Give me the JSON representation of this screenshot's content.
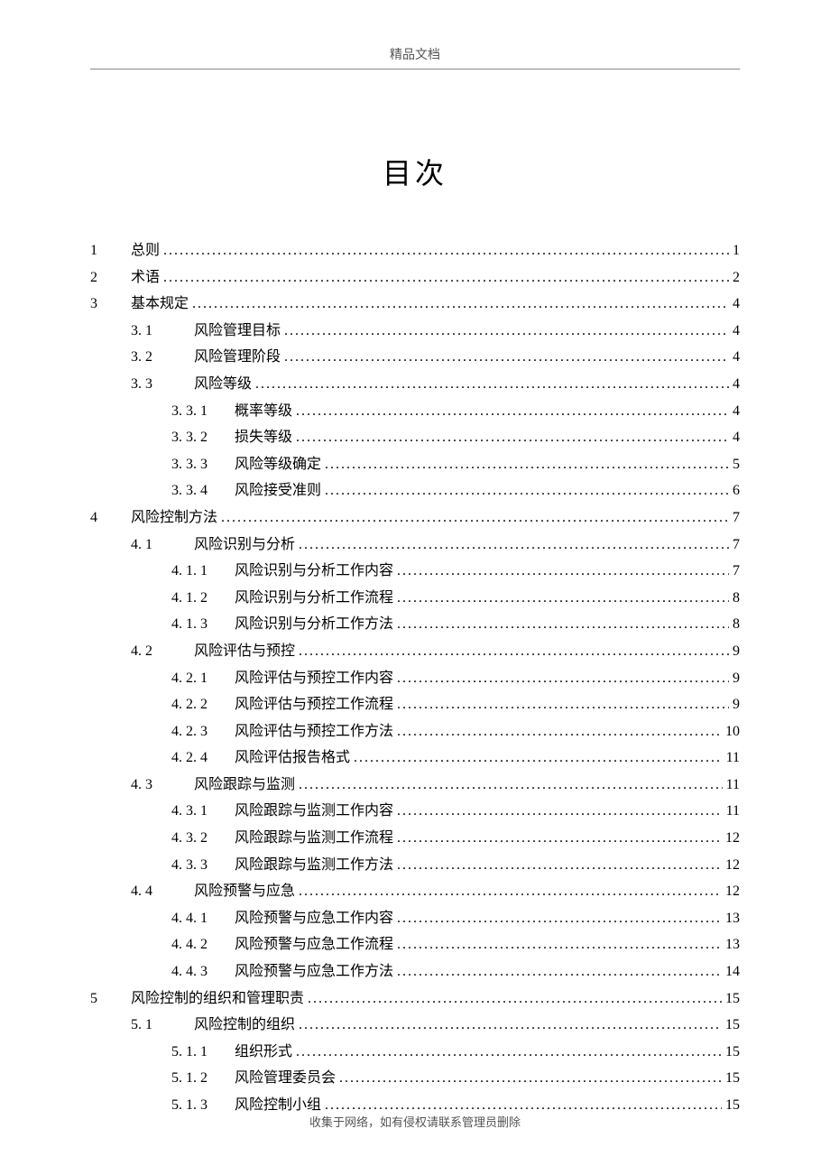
{
  "header_text": "精品文档",
  "title": "目次",
  "footer_text": "收集于网络，如有侵权请联系管理员删除",
  "toc": [
    {
      "level": 0,
      "num": "1",
      "label": "总则",
      "page": "1"
    },
    {
      "level": 0,
      "num": "2",
      "label": "术语",
      "page": "2"
    },
    {
      "level": 0,
      "num": "3",
      "label": "基本规定",
      "page": "4"
    },
    {
      "level": 1,
      "num": "3. 1",
      "label": "风险管理目标",
      "page": "4"
    },
    {
      "level": 1,
      "num": "3. 2",
      "label": "风险管理阶段",
      "page": "4"
    },
    {
      "level": 1,
      "num": "3. 3",
      "label": "风险等级",
      "page": "4"
    },
    {
      "level": 2,
      "num": "3. 3. 1",
      "label": "概率等级",
      "page": "4"
    },
    {
      "level": 2,
      "num": "3. 3. 2",
      "label": "损失等级",
      "page": "4"
    },
    {
      "level": 2,
      "num": "3. 3. 3",
      "label": "风险等级确定",
      "page": "5"
    },
    {
      "level": 2,
      "num": "3. 3. 4",
      "label": "风险接受准则",
      "page": "6"
    },
    {
      "level": 0,
      "num": "4",
      "label": "风险控制方法",
      "page": "7"
    },
    {
      "level": 1,
      "num": "4. 1",
      "label": "风险识别与分析",
      "page": "7"
    },
    {
      "level": 2,
      "num": "4. 1. 1",
      "label": "风险识别与分析工作内容",
      "page": "7"
    },
    {
      "level": 2,
      "num": "4. 1. 2",
      "label": "风险识别与分析工作流程",
      "page": "8"
    },
    {
      "level": 2,
      "num": "4. 1. 3",
      "label": "风险识别与分析工作方法",
      "page": "8"
    },
    {
      "level": 1,
      "num": "4. 2",
      "label": "风险评估与预控",
      "page": "9"
    },
    {
      "level": 2,
      "num": "4. 2. 1",
      "label": "风险评估与预控工作内容",
      "page": "9"
    },
    {
      "level": 2,
      "num": "4. 2. 2",
      "label": "风险评估与预控工作流程",
      "page": "9"
    },
    {
      "level": 2,
      "num": "4. 2. 3",
      "label": "风险评估与预控工作方法",
      "page": "10"
    },
    {
      "level": 2,
      "num": "4. 2. 4",
      "label": "风险评估报告格式",
      "page": "11"
    },
    {
      "level": 1,
      "num": "4. 3",
      "label": "风险跟踪与监测",
      "page": "11"
    },
    {
      "level": 2,
      "num": "4. 3. 1",
      "label": "风险跟踪与监测工作内容",
      "page": "11"
    },
    {
      "level": 2,
      "num": "4. 3. 2",
      "label": "风险跟踪与监测工作流程",
      "page": "12"
    },
    {
      "level": 2,
      "num": "4. 3. 3",
      "label": "风险跟踪与监测工作方法",
      "page": "12"
    },
    {
      "level": 1,
      "num": "4. 4",
      "label": "风险预警与应急",
      "page": "12"
    },
    {
      "level": 2,
      "num": "4. 4. 1",
      "label": "风险预警与应急工作内容",
      "page": "13"
    },
    {
      "level": 2,
      "num": "4. 4. 2",
      "label": "风险预警与应急工作流程",
      "page": "13"
    },
    {
      "level": 2,
      "num": "4. 4. 3",
      "label": "风险预警与应急工作方法",
      "page": "14"
    },
    {
      "level": 0,
      "num": "5",
      "label": "风险控制的组织和管理职责",
      "page": "15"
    },
    {
      "level": 1,
      "num": "5. 1",
      "label": "风险控制的组织",
      "page": "15"
    },
    {
      "level": 2,
      "num": "5. 1. 1",
      "label": "组织形式",
      "page": "15"
    },
    {
      "level": 2,
      "num": "5. 1. 2",
      "label": "风险管理委员会",
      "page": "15"
    },
    {
      "level": 2,
      "num": "5. 1. 3",
      "label": "风险控制小组",
      "page": "15"
    }
  ]
}
